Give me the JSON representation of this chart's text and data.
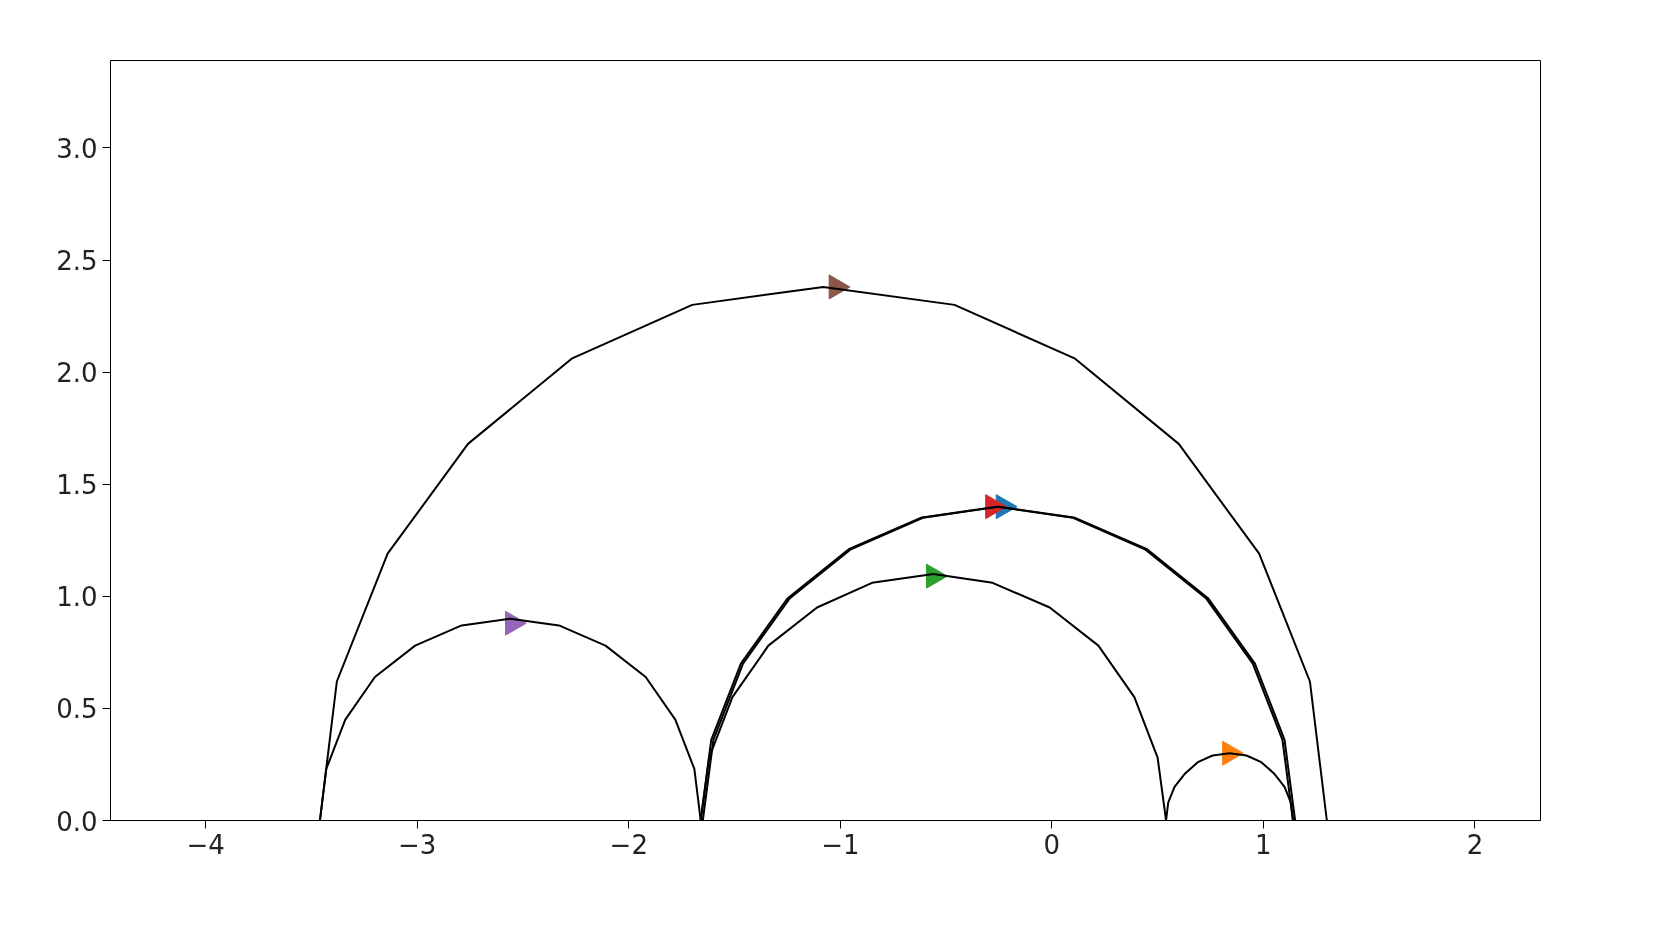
{
  "chart_data": {
    "type": "line",
    "grid": false,
    "xlim": [
      -4.45,
      2.31
    ],
    "ylim": [
      0,
      3.39
    ],
    "xticks": [
      {
        "value": -4,
        "label": "−4"
      },
      {
        "value": -3,
        "label": "−3"
      },
      {
        "value": -2,
        "label": "−2"
      },
      {
        "value": -1,
        "label": "−1"
      },
      0,
      1,
      2
    ],
    "yticks": [
      {
        "value": 0,
        "label": "0.0"
      },
      {
        "value": 0.5,
        "label": "0.5"
      },
      {
        "value": 1,
        "label": "1.0"
      },
      {
        "value": 1.5,
        "label": "1.5"
      },
      {
        "value": 2,
        "label": "2.0"
      },
      {
        "value": 2.5,
        "label": "2.5"
      },
      {
        "value": 3,
        "label": "3.0"
      }
    ],
    "series": [
      {
        "color": "#000000",
        "marker": "none",
        "x": [
          -3.46,
          -3.38,
          -3.14,
          -2.76,
          -2.27,
          -1.7,
          -1.08,
          -0.46,
          0.11,
          0.6,
          0.98,
          1.22,
          1.3
        ],
        "values": [
          0,
          0.62,
          1.19,
          1.68,
          2.06,
          2.3,
          2.38,
          2.3,
          2.06,
          1.68,
          1.19,
          0.62,
          0
        ]
      },
      {
        "color": "#000000",
        "marker": "none",
        "x": [
          -3.46,
          -3.43,
          -3.34,
          -3.2,
          -3.01,
          -2.79,
          -2.56,
          -2.33,
          -2.11,
          -1.92,
          -1.78,
          -1.69,
          -1.66
        ],
        "values": [
          0,
          0.23,
          0.45,
          0.64,
          0.78,
          0.87,
          0.9,
          0.87,
          0.78,
          0.64,
          0.45,
          0.23,
          0
        ]
      },
      {
        "color": "#000000",
        "marker": "none",
        "x": [
          -1.66,
          -1.61,
          -1.47,
          -1.25,
          -0.96,
          -0.62,
          -0.26,
          0.1,
          0.44,
          0.73,
          0.95,
          1.09,
          1.14
        ],
        "values": [
          0,
          0.36,
          0.7,
          0.99,
          1.21,
          1.35,
          1.4,
          1.35,
          1.21,
          0.99,
          0.7,
          0.36,
          0
        ]
      },
      {
        "color": "#000000",
        "marker": "none",
        "x": [
          -1.65,
          -1.6,
          -1.46,
          -1.24,
          -0.95,
          -0.61,
          -0.25,
          0.11,
          0.45,
          0.74,
          0.96,
          1.1,
          1.15
        ],
        "values": [
          0,
          0.36,
          0.7,
          0.99,
          1.21,
          1.35,
          1.4,
          1.35,
          1.21,
          0.99,
          0.7,
          0.36,
          0
        ]
      },
      {
        "color": "#000000",
        "marker": "none",
        "x": [
          -1.66,
          -1.62,
          -1.51,
          -1.34,
          -1.11,
          -0.85,
          -0.56,
          -0.28,
          -0.01,
          0.22,
          0.39,
          0.5,
          0.54
        ],
        "values": [
          0,
          0.28,
          0.55,
          0.78,
          0.95,
          1.06,
          1.1,
          1.06,
          0.95,
          0.78,
          0.55,
          0.28,
          0
        ]
      },
      {
        "color": "#000000",
        "marker": "none",
        "x": [
          0.54,
          0.55,
          0.58,
          0.63,
          0.69,
          0.76,
          0.84,
          0.92,
          0.99,
          1.05,
          1.1,
          1.13,
          1.14
        ],
        "values": [
          0,
          0.08,
          0.15,
          0.21,
          0.26,
          0.29,
          0.3,
          0.29,
          0.26,
          0.21,
          0.15,
          0.08,
          0
        ]
      },
      {
        "type": "scatter",
        "color": "#1f77b4",
        "marker": "triangle",
        "x": [
          -0.23
        ],
        "values": [
          1.4
        ]
      },
      {
        "type": "scatter",
        "color": "#ff7f0e",
        "marker": "triangle",
        "x": [
          0.84
        ],
        "values": [
          0.3
        ]
      },
      {
        "type": "scatter",
        "color": "#2ca02c",
        "marker": "triangle",
        "x": [
          -0.56
        ],
        "values": [
          1.09
        ]
      },
      {
        "type": "scatter",
        "color": "#d62728",
        "marker": "triangle",
        "x": [
          -0.28
        ],
        "values": [
          1.4
        ]
      },
      {
        "type": "scatter",
        "color": "#9467bd",
        "marker": "triangle",
        "x": [
          -2.55
        ],
        "values": [
          0.88
        ]
      },
      {
        "type": "scatter",
        "color": "#8c564b",
        "marker": "triangle",
        "x": [
          -1.02
        ],
        "values": [
          2.38
        ]
      }
    ]
  }
}
